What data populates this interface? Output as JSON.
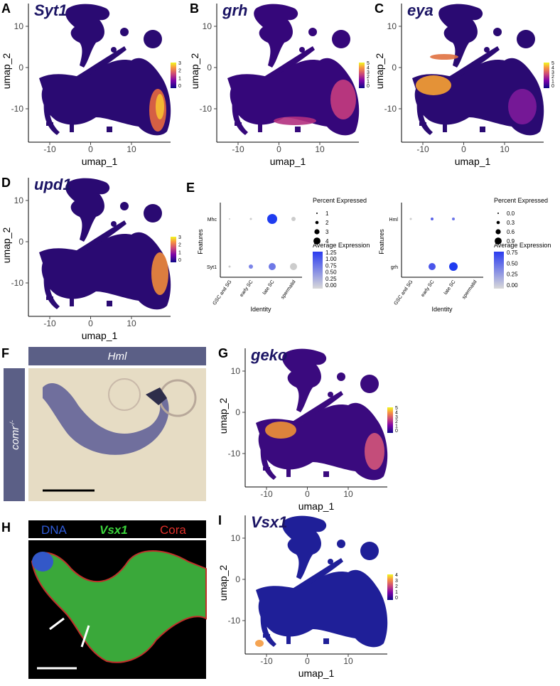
{
  "umap_panels": [
    {
      "label": "A",
      "gene": "Syt1",
      "x_label": "umap_1",
      "y_label": "umap_2",
      "xticks": [
        "-10",
        "0",
        "10"
      ],
      "yticks": [
        "10",
        "0",
        "-10"
      ],
      "colorbar_ticks": [
        "3",
        "2",
        "1",
        "0"
      ]
    },
    {
      "label": "B",
      "gene": "grh",
      "x_label": "umap_1",
      "y_label": "umap_2",
      "xticks": [
        "-10",
        "0",
        "10"
      ],
      "yticks": [
        "10",
        "0",
        "-10"
      ],
      "colorbar_ticks": [
        "5",
        "4",
        "3",
        "2",
        "1",
        "0"
      ]
    },
    {
      "label": "C",
      "gene": "eya",
      "x_label": "umap_1",
      "y_label": "umap_2",
      "xticks": [
        "-10",
        "0",
        "10"
      ],
      "yticks": [
        "10",
        "0",
        "-10"
      ],
      "colorbar_ticks": [
        "5",
        "4",
        "3",
        "2",
        "1",
        "0"
      ]
    },
    {
      "label": "D",
      "gene": "upd1",
      "x_label": "umap_1",
      "y_label": "umap_2",
      "xticks": [
        "-10",
        "0",
        "10"
      ],
      "yticks": [
        "10",
        "0",
        "-10"
      ],
      "colorbar_ticks": [
        "3",
        "2",
        "1",
        "0"
      ]
    },
    {
      "label": "G",
      "gene": "geko",
      "x_label": "umap_1",
      "y_label": "umap_2",
      "xticks": [
        "-10",
        "0",
        "10"
      ],
      "yticks": [
        "10",
        "0",
        "-10"
      ],
      "colorbar_ticks": [
        "5",
        "4",
        "3",
        "2",
        "1",
        "0"
      ]
    },
    {
      "label": "I",
      "gene": "Vsx1",
      "x_label": "umap_1",
      "y_label": "umap_2",
      "xticks": [
        "-10",
        "0",
        "10"
      ],
      "yticks": [
        "10",
        "0",
        "-10"
      ],
      "colorbar_ticks": [
        "4",
        "3",
        "2",
        "1",
        "0"
      ]
    }
  ],
  "dot_panel": {
    "label": "E",
    "plots": [
      {
        "y_label": "Features",
        "features": [
          "Mhc",
          "Syt1"
        ],
        "identities": [
          "GSC and SG",
          "early SC",
          "late SC",
          "spermatid"
        ],
        "x_label": "Identity",
        "size_legend_title": "Percent Expressed",
        "size_legend": [
          "1",
          "2",
          "3",
          "4"
        ],
        "color_legend_title": "Average Expression",
        "color_legend": [
          "1.25",
          "1.00",
          "0.75",
          "0.50",
          "0.25",
          "0.00"
        ]
      },
      {
        "y_label": "Features",
        "features": [
          "Hml",
          "grh"
        ],
        "identities": [
          "GSC and SG",
          "early SC",
          "late SC",
          "spermatid"
        ],
        "x_label": "Identity",
        "size_legend_title": "Percent Expressed",
        "size_legend": [
          "0.0",
          "0.3",
          "0.6",
          "0.9"
        ],
        "color_legend_title": "Average Expression",
        "color_legend": [
          "0.75",
          "0.50",
          "0.25",
          "0.00"
        ]
      }
    ]
  },
  "image_f": {
    "label": "F",
    "title": "Hml",
    "side_label": "comr",
    "side_label_sup": "-/-"
  },
  "image_h": {
    "label": "H",
    "channels": [
      "DNA",
      "Vsx1",
      "Cora"
    ]
  }
}
